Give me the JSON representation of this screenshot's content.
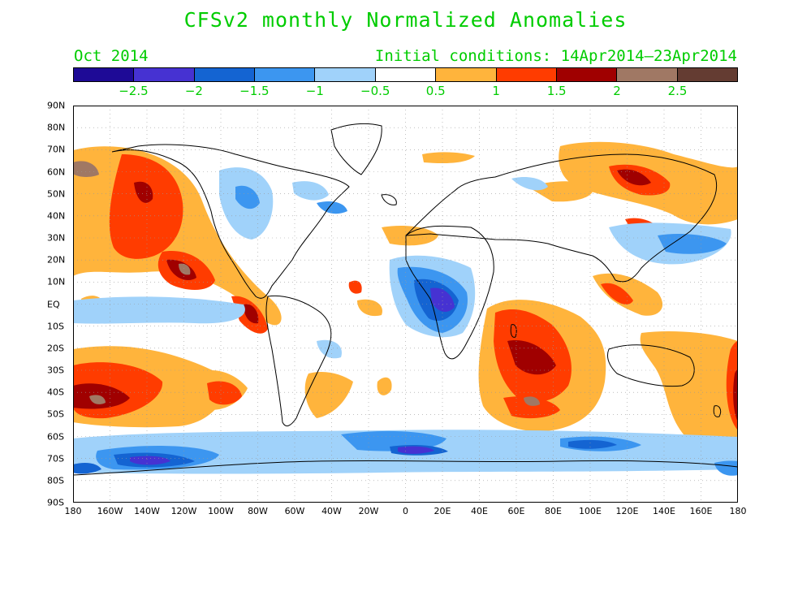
{
  "title": "CFSv2 monthly Normalized Anomalies",
  "month": "Oct 2014",
  "initial_conditions": "Initial conditions: 14Apr2014–23Apr2014",
  "colorbar": {
    "colors": [
      "#1e0a96",
      "#4632d2",
      "#1464d2",
      "#3c96f0",
      "#a0d2fa",
      "#ffffff",
      "#ffb43c",
      "#ff3c00",
      "#a00000",
      "#a07864",
      "#643c32"
    ],
    "labels": [
      "−2.5",
      "−2",
      "−1.5",
      "−1",
      "−0.5",
      "0.5",
      "1",
      "1.5",
      "2",
      "2.5"
    ]
  },
  "lat_labels": [
    "90N",
    "80N",
    "70N",
    "60N",
    "50N",
    "40N",
    "30N",
    "20N",
    "10N",
    "EQ",
    "10S",
    "20S",
    "30S",
    "40S",
    "50S",
    "60S",
    "70S",
    "80S",
    "90S"
  ],
  "lon_labels": [
    "180",
    "160W",
    "140W",
    "120W",
    "100W",
    "80W",
    "60W",
    "40W",
    "20W",
    "0",
    "20E",
    "40E",
    "60E",
    "80E",
    "100E",
    "120E",
    "140E",
    "160E",
    "180"
  ]
}
